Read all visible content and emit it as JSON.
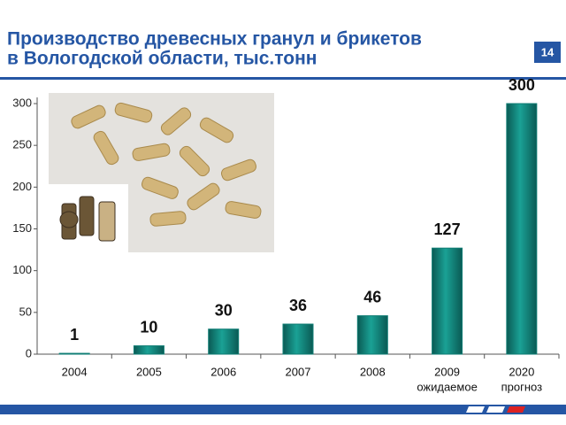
{
  "header": {
    "title_lines": [
      "Производство древесных гранул и брикетов",
      "в Вологодской области, тыс.тонн"
    ],
    "page_number": "14"
  },
  "chart_data": {
    "type": "bar",
    "categories": [
      "2004",
      "2005",
      "2006",
      "2007",
      "2008",
      "2009",
      "2020"
    ],
    "category_notes": [
      null,
      null,
      null,
      null,
      null,
      "ожидаемое",
      "прогноз"
    ],
    "values": [
      1,
      10,
      30,
      36,
      46,
      127,
      300
    ],
    "color": "#0f7d74",
    "ylim": [
      0,
      300
    ],
    "yticks": [
      0,
      50,
      100,
      150,
      200,
      250,
      300
    ]
  }
}
